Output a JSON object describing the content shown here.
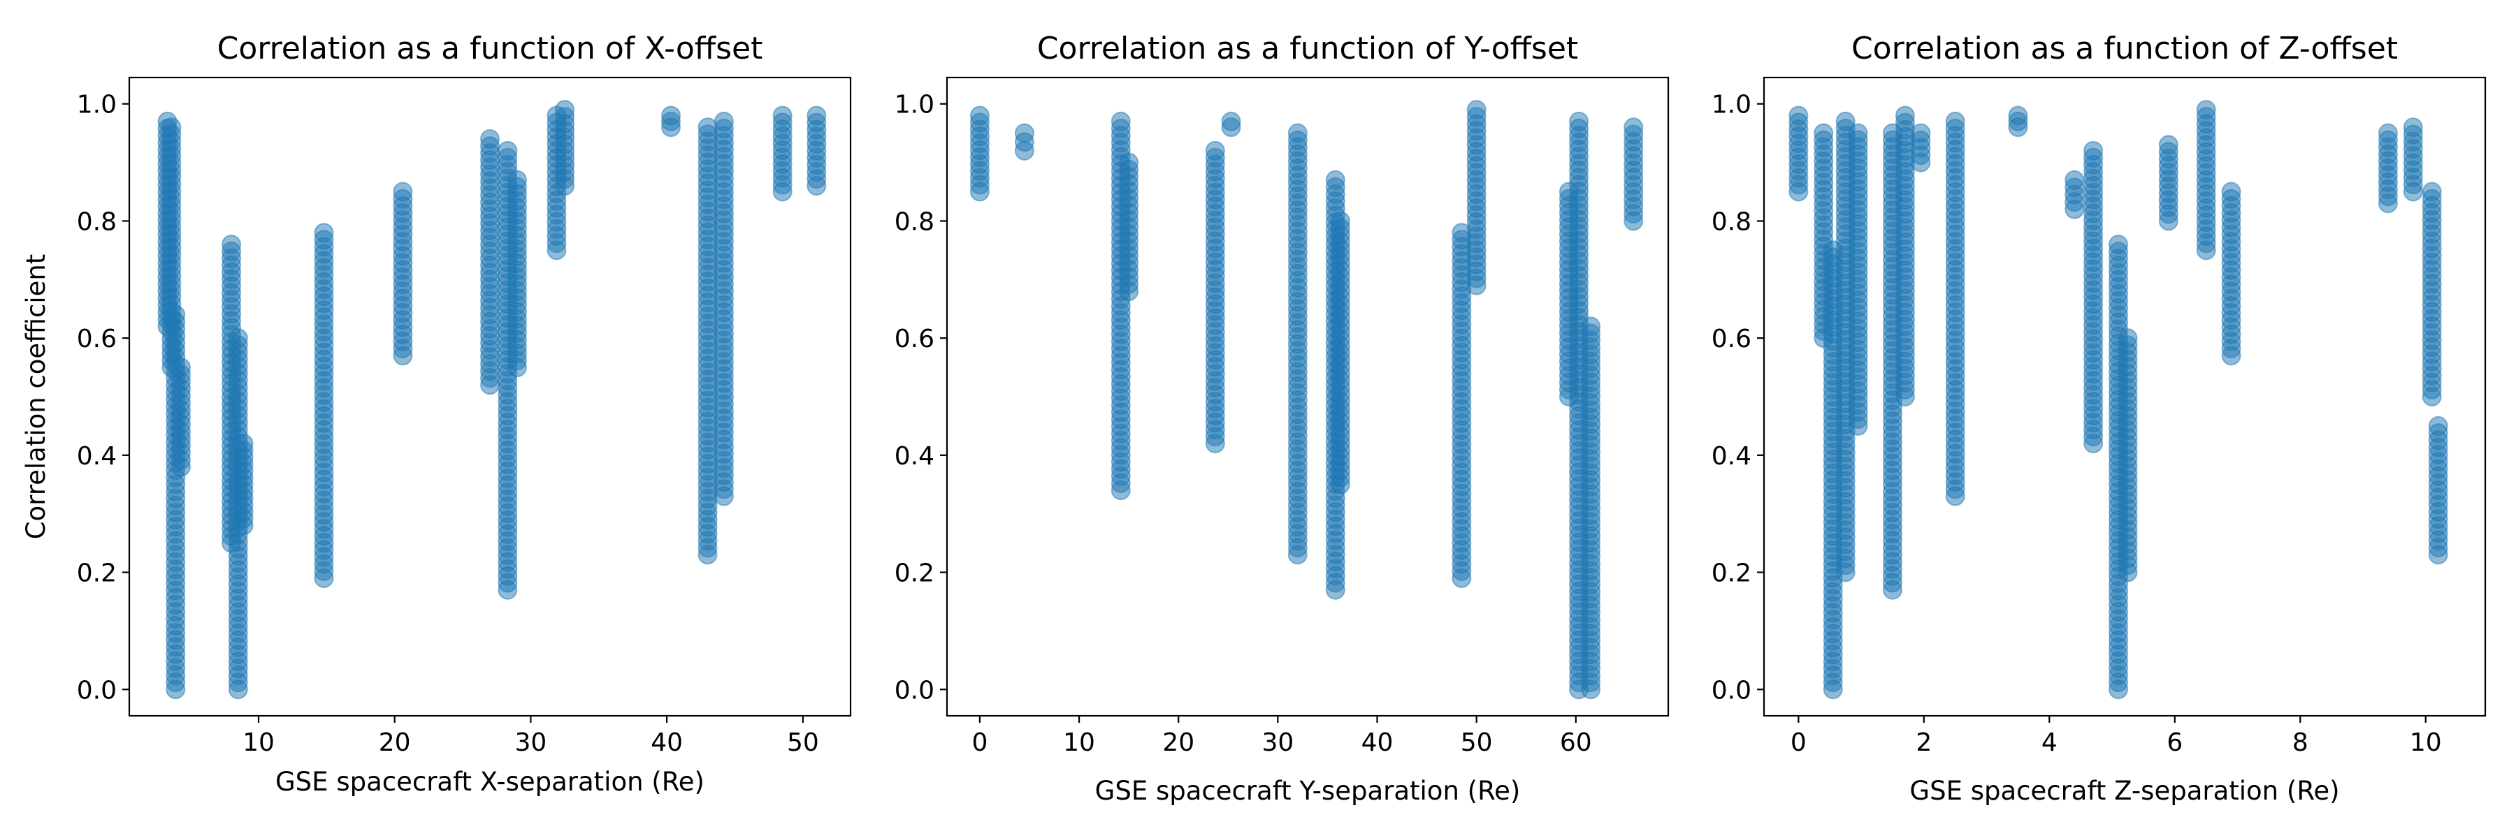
{
  "figure": {
    "background": "#ffffff",
    "point_color": "#1f77b4",
    "point_alpha": 0.5
  },
  "chart_data": [
    {
      "type": "scatter",
      "title": "Correlation as a function of X-offset",
      "xlabel": "GSE spacecraft X-separation (Re)",
      "ylabel": "Correlation coefficient",
      "xlim": [
        0.5,
        53.5
      ],
      "ylim": [
        -0.045,
        1.045
      ],
      "xticks": [
        10,
        20,
        30,
        40,
        50
      ],
      "yticks": [
        0.0,
        0.2,
        0.4,
        0.6,
        0.8,
        1.0
      ],
      "ytick_labels": [
        "0.0",
        "0.2",
        "0.4",
        "0.6",
        "0.8",
        "1.0"
      ],
      "grid": false,
      "clusters": [
        {
          "x": 3.3,
          "ymin": 0.62,
          "ymax": 0.97
        },
        {
          "x": 3.6,
          "ymin": 0.55,
          "ymax": 0.96
        },
        {
          "x": 3.9,
          "ymin": 0.0,
          "ymax": 0.64
        },
        {
          "x": 4.3,
          "ymin": 0.38,
          "ymax": 0.55
        },
        {
          "x": 8.0,
          "ymin": 0.25,
          "ymax": 0.76
        },
        {
          "x": 8.5,
          "ymin": 0.0,
          "ymax": 0.6
        },
        {
          "x": 8.9,
          "ymin": 0.28,
          "ymax": 0.42
        },
        {
          "x": 14.8,
          "ymin": 0.19,
          "ymax": 0.78
        },
        {
          "x": 20.6,
          "ymin": 0.57,
          "ymax": 0.85
        },
        {
          "x": 27.0,
          "ymin": 0.52,
          "ymax": 0.94
        },
        {
          "x": 28.3,
          "ymin": 0.17,
          "ymax": 0.92
        },
        {
          "x": 29.0,
          "ymin": 0.55,
          "ymax": 0.87
        },
        {
          "x": 31.9,
          "ymin": 0.75,
          "ymax": 0.98
        },
        {
          "x": 32.5,
          "ymin": 0.86,
          "ymax": 0.99
        },
        {
          "x": 40.3,
          "ymin": 0.96,
          "ymax": 0.98
        },
        {
          "x": 43.0,
          "ymin": 0.23,
          "ymax": 0.96
        },
        {
          "x": 44.2,
          "ymin": 0.33,
          "ymax": 0.97
        },
        {
          "x": 48.5,
          "ymin": 0.85,
          "ymax": 0.98
        },
        {
          "x": 51.0,
          "ymin": 0.86,
          "ymax": 0.98
        }
      ]
    },
    {
      "type": "scatter",
      "title": "Correlation as a function of Y-offset",
      "xlabel": "GSE spacecraft Y-separation (Re)",
      "ylabel": "",
      "xlim": [
        -3.3,
        69.3
      ],
      "ylim": [
        -0.045,
        1.045
      ],
      "xticks": [
        0,
        10,
        20,
        30,
        40,
        50,
        60
      ],
      "yticks": [
        0.0,
        0.2,
        0.4,
        0.6,
        0.8,
        1.0
      ],
      "ytick_labels": [
        "0.0",
        "0.2",
        "0.4",
        "0.6",
        "0.8",
        "1.0"
      ],
      "grid": false,
      "clusters": [
        {
          "x": 0.0,
          "ymin": 0.85,
          "ymax": 0.98
        },
        {
          "x": 4.5,
          "ymin": 0.92,
          "ymax": 0.95
        },
        {
          "x": 14.2,
          "ymin": 0.34,
          "ymax": 0.97
        },
        {
          "x": 15.0,
          "ymin": 0.68,
          "ymax": 0.9
        },
        {
          "x": 23.7,
          "ymin": 0.42,
          "ymax": 0.92
        },
        {
          "x": 25.3,
          "ymin": 0.96,
          "ymax": 0.97
        },
        {
          "x": 32.0,
          "ymin": 0.23,
          "ymax": 0.95
        },
        {
          "x": 35.8,
          "ymin": 0.17,
          "ymax": 0.87
        },
        {
          "x": 36.3,
          "ymin": 0.35,
          "ymax": 0.8
        },
        {
          "x": 48.5,
          "ymin": 0.19,
          "ymax": 0.78
        },
        {
          "x": 50.0,
          "ymin": 0.69,
          "ymax": 0.99
        },
        {
          "x": 59.3,
          "ymin": 0.5,
          "ymax": 0.85
        },
        {
          "x": 60.3,
          "ymin": 0.0,
          "ymax": 0.97
        },
        {
          "x": 61.5,
          "ymin": 0.0,
          "ymax": 0.62
        },
        {
          "x": 65.8,
          "ymin": 0.8,
          "ymax": 0.96
        }
      ]
    },
    {
      "type": "scatter",
      "title": "Correlation as a function of Z-offset",
      "xlabel": "GSE spacecraft Z-separation (Re)",
      "ylabel": "",
      "xlim": [
        -0.55,
        10.95
      ],
      "ylim": [
        -0.045,
        1.045
      ],
      "xticks": [
        0,
        2,
        4,
        6,
        8,
        10
      ],
      "yticks": [
        0.0,
        0.2,
        0.4,
        0.6,
        0.8,
        1.0
      ],
      "ytick_labels": [
        "0.0",
        "0.2",
        "0.4",
        "0.6",
        "0.8",
        "1.0"
      ],
      "grid": false,
      "clusters": [
        {
          "x": 0.0,
          "ymin": 0.85,
          "ymax": 0.98
        },
        {
          "x": 0.4,
          "ymin": 0.6,
          "ymax": 0.95
        },
        {
          "x": 0.55,
          "ymin": 0.0,
          "ymax": 0.75
        },
        {
          "x": 0.75,
          "ymin": 0.2,
          "ymax": 0.97
        },
        {
          "x": 0.95,
          "ymin": 0.45,
          "ymax": 0.95
        },
        {
          "x": 1.5,
          "ymin": 0.17,
          "ymax": 0.95
        },
        {
          "x": 1.7,
          "ymin": 0.5,
          "ymax": 0.98
        },
        {
          "x": 1.95,
          "ymin": 0.9,
          "ymax": 0.95
        },
        {
          "x": 2.5,
          "ymin": 0.33,
          "ymax": 0.97
        },
        {
          "x": 3.5,
          "ymin": 0.96,
          "ymax": 0.98
        },
        {
          "x": 4.4,
          "ymin": 0.82,
          "ymax": 0.87
        },
        {
          "x": 4.7,
          "ymin": 0.42,
          "ymax": 0.92
        },
        {
          "x": 5.1,
          "ymin": 0.0,
          "ymax": 0.76
        },
        {
          "x": 5.25,
          "ymin": 0.2,
          "ymax": 0.6
        },
        {
          "x": 5.9,
          "ymin": 0.8,
          "ymax": 0.93
        },
        {
          "x": 6.5,
          "ymin": 0.75,
          "ymax": 0.99
        },
        {
          "x": 6.9,
          "ymin": 0.57,
          "ymax": 0.85
        },
        {
          "x": 9.4,
          "ymin": 0.83,
          "ymax": 0.95
        },
        {
          "x": 9.8,
          "ymin": 0.85,
          "ymax": 0.96
        },
        {
          "x": 10.1,
          "ymin": 0.5,
          "ymax": 0.85
        },
        {
          "x": 10.2,
          "ymin": 0.23,
          "ymax": 0.45
        }
      ]
    }
  ]
}
